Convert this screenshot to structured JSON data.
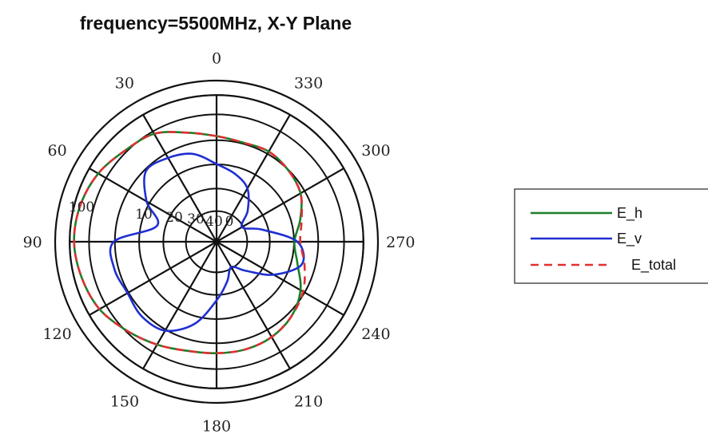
{
  "chart_data": {
    "type": "line",
    "subtype": "polar",
    "title": "frequency=5500MHz, X-Y Plane",
    "angle_direction": "counterclockwise",
    "angle_zero_position": "top",
    "angle_ticks": [
      0,
      30,
      60,
      90,
      120,
      150,
      180,
      210,
      240,
      270,
      300,
      330
    ],
    "angle_tick_labels": [
      "0",
      "30",
      "60",
      "90",
      "120",
      "150",
      "180",
      "210",
      "240",
      "270",
      "300",
      "330"
    ],
    "radial_tick_labels": [
      "0",
      "10",
      "20",
      "30",
      "40",
      "100"
    ],
    "radial_rings": 6,
    "grid": true,
    "legend_position": "right",
    "series": [
      {
        "name": "E_h",
        "color": "#1a7f2a",
        "style": "solid",
        "theta": [
          0,
          15,
          30,
          45,
          60,
          75,
          90,
          105,
          120,
          135,
          150,
          165,
          180,
          195,
          210,
          225,
          240,
          255,
          270,
          285,
          300,
          315,
          330,
          345
        ],
        "r": [
          0.72,
          0.77,
          0.85,
          0.88,
          0.93,
          0.96,
          0.97,
          0.95,
          0.92,
          0.86,
          0.81,
          0.77,
          0.76,
          0.76,
          0.75,
          0.72,
          0.66,
          0.57,
          0.53,
          0.59,
          0.66,
          0.69,
          0.71,
          0.7
        ]
      },
      {
        "name": "E_v",
        "color": "#1f2fd0",
        "style": "solid",
        "theta": [
          0,
          15,
          30,
          45,
          60,
          75,
          90,
          105,
          120,
          135,
          150,
          165,
          180,
          195,
          210,
          225,
          240,
          255,
          270,
          285,
          300,
          315,
          330,
          345
        ],
        "r": [
          0.53,
          0.62,
          0.66,
          0.68,
          0.55,
          0.42,
          0.7,
          0.72,
          0.7,
          0.72,
          0.7,
          0.58,
          0.4,
          0.28,
          0.2,
          0.28,
          0.45,
          0.6,
          0.55,
          0.32,
          0.2,
          0.3,
          0.42,
          0.48
        ]
      },
      {
        "name": "E_total",
        "color": "#e03030",
        "style": "dashed",
        "theta": [
          0,
          15,
          30,
          45,
          60,
          75,
          90,
          105,
          120,
          135,
          150,
          165,
          180,
          195,
          210,
          225,
          240,
          255,
          270,
          285,
          300,
          315,
          330,
          345
        ],
        "r": [
          0.72,
          0.77,
          0.85,
          0.88,
          0.93,
          0.96,
          0.97,
          0.95,
          0.92,
          0.86,
          0.81,
          0.77,
          0.76,
          0.76,
          0.75,
          0.72,
          0.68,
          0.62,
          0.57,
          0.6,
          0.66,
          0.69,
          0.71,
          0.7
        ]
      }
    ]
  }
}
